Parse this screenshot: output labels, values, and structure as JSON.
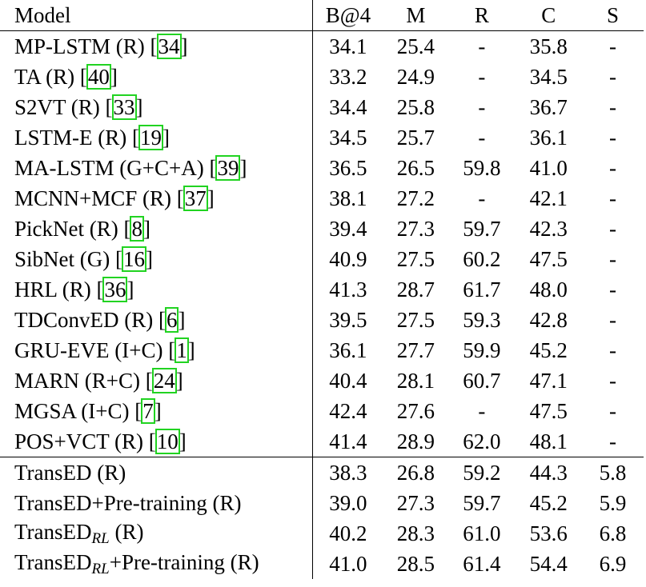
{
  "header": {
    "model": "Model",
    "b4": "B@4",
    "m": "M",
    "r": "R",
    "c": "C",
    "s": "S"
  },
  "rows": [
    {
      "name": "MP-LSTM (R) [",
      "ref": "34",
      "after": "]",
      "b4": "34.1",
      "m": "25.4",
      "r": "-",
      "c": "35.8",
      "s": "-"
    },
    {
      "name": "TA (R) [",
      "ref": "40",
      "after": "]",
      "b4": "33.2",
      "m": "24.9",
      "r": "-",
      "c": "34.5",
      "s": "-"
    },
    {
      "name": "S2VT (R) [",
      "ref": "33",
      "after": "]",
      "b4": "34.4",
      "m": "25.8",
      "r": "-",
      "c": "36.7",
      "s": "-"
    },
    {
      "name": "LSTM-E (R) [",
      "ref": "19",
      "after": "]",
      "b4": "34.5",
      "m": "25.7",
      "r": "-",
      "c": "36.1",
      "s": "-"
    },
    {
      "name": "MA-LSTM (G+C+A) [",
      "ref": "39",
      "after": "]",
      "b4": "36.5",
      "m": "26.5",
      "r": "59.8",
      "c": "41.0",
      "s": "-"
    },
    {
      "name": "MCNN+MCF (R) [",
      "ref": "37",
      "after": "]",
      "b4": "38.1",
      "m": "27.2",
      "r": "-",
      "c": "42.1",
      "s": "-"
    },
    {
      "name": "PickNet (R) [",
      "ref": "8",
      "after": "]",
      "b4": "39.4",
      "m": "27.3",
      "r": "59.7",
      "c": "42.3",
      "s": "-"
    },
    {
      "name": "SibNet (G) [",
      "ref": "16",
      "after": "]",
      "b4": "40.9",
      "m": "27.5",
      "r": "60.2",
      "c": "47.5",
      "s": "-"
    },
    {
      "name": "HRL (R) [",
      "ref": "36",
      "after": "]",
      "b4": "41.3",
      "m": "28.7",
      "r": "61.7",
      "c": "48.0",
      "s": "-"
    },
    {
      "name": "TDConvED (R) [",
      "ref": "6",
      "after": "]",
      "b4": "39.5",
      "m": "27.5",
      "r": "59.3",
      "c": "42.8",
      "s": "-"
    },
    {
      "name": "GRU-EVE (I+C) [",
      "ref": "1",
      "after": "]",
      "b4": "36.1",
      "m": "27.7",
      "r": "59.9",
      "c": "45.2",
      "s": "-"
    },
    {
      "name": "MARN (R+C) [",
      "ref": "24",
      "after": "]",
      "b4": "40.4",
      "m": "28.1",
      "r": "60.7",
      "c": "47.1",
      "s": "-"
    },
    {
      "name": "MGSA (I+C) [",
      "ref": "7",
      "after": "]",
      "b4": "42.4",
      "m": "27.6",
      "r": "-",
      "c": "47.5",
      "s": "-"
    },
    {
      "name": "POS+VCT (R) [",
      "ref": "10",
      "after": "]",
      "b4": "41.4",
      "m": "28.9",
      "r": "62.0",
      "c": "48.1",
      "s": "-"
    }
  ],
  "ours": [
    {
      "name": "TransED (R)",
      "b4": "38.3",
      "m": "26.8",
      "r": "59.2",
      "c": "44.3",
      "s": "5.8"
    },
    {
      "name": "TransED+Pre-training (R)",
      "b4": "39.0",
      "m": "27.3",
      "r": "59.7",
      "c": "45.2",
      "s": "5.9"
    },
    {
      "name": "TransED",
      "sub": "RL",
      "tail": " (R)",
      "b4": "40.2",
      "m": "28.3",
      "r": "61.0",
      "c": "53.6",
      "s": "6.8"
    },
    {
      "name": "TransED",
      "sub": "RL",
      "tail": "+Pre-training (R)",
      "b4": "41.0",
      "m": "28.5",
      "r": "61.4",
      "c": "54.4",
      "s": "6.9"
    }
  ]
}
